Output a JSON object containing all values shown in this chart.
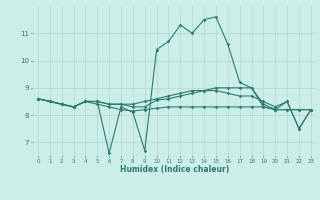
{
  "xlabel": "Humidex (Indice chaleur)",
  "x_values": [
    0,
    1,
    2,
    3,
    4,
    5,
    6,
    7,
    8,
    9,
    10,
    11,
    12,
    13,
    14,
    15,
    16,
    17,
    18,
    19,
    20,
    21,
    22,
    23
  ],
  "line1": [
    8.6,
    8.5,
    8.4,
    8.3,
    8.5,
    8.5,
    6.6,
    8.3,
    8.1,
    6.7,
    10.4,
    10.7,
    11.3,
    11.0,
    11.5,
    11.6,
    10.6,
    9.2,
    9.0,
    8.3,
    8.2,
    8.5,
    7.5,
    8.2
  ],
  "line2": [
    8.6,
    8.5,
    8.4,
    8.3,
    8.5,
    8.5,
    8.4,
    8.4,
    8.3,
    8.3,
    8.55,
    8.6,
    8.7,
    8.8,
    8.9,
    9.0,
    9.0,
    9.0,
    9.0,
    8.4,
    8.2,
    8.2,
    8.2,
    8.2
  ],
  "line3": [
    8.6,
    8.5,
    8.4,
    8.3,
    8.5,
    8.4,
    8.3,
    8.2,
    8.15,
    8.2,
    8.25,
    8.3,
    8.3,
    8.3,
    8.3,
    8.3,
    8.3,
    8.3,
    8.3,
    8.3,
    8.2,
    8.2,
    8.2,
    8.2
  ],
  "line4": [
    8.6,
    8.5,
    8.4,
    8.3,
    8.5,
    8.5,
    8.4,
    8.4,
    8.4,
    8.5,
    8.6,
    8.7,
    8.8,
    8.9,
    8.9,
    8.9,
    8.8,
    8.7,
    8.7,
    8.5,
    8.3,
    8.5,
    7.5,
    8.2
  ],
  "line_color": "#2d7a6e",
  "bg_color": "#cceee8",
  "grid_color": "#b0d8d0",
  "ylim": [
    6.5,
    12.0
  ],
  "yticks": [
    7,
    8,
    9,
    10,
    11
  ],
  "xlim": [
    -0.5,
    23.5
  ]
}
